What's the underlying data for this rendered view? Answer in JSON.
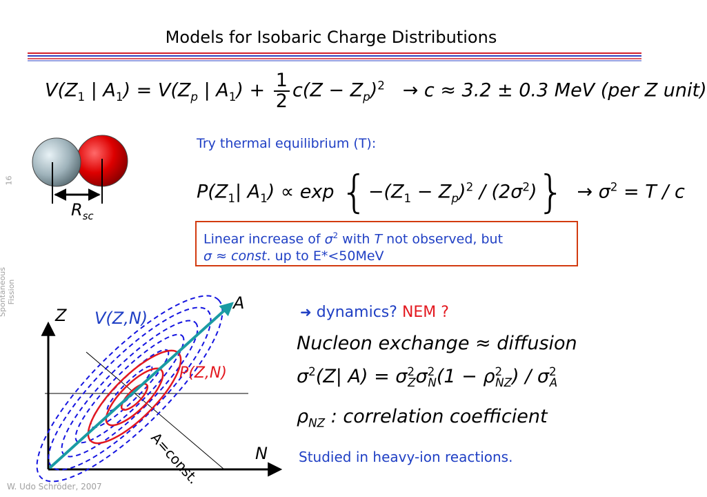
{
  "title": "Models for Isobaric Charge Distributions",
  "colors": {
    "accent_red": "#e3181f",
    "accent_blue": "#1f3fc4",
    "note_border": "#d23a0f",
    "arrow_teal": "#1a9ba3"
  },
  "equation1": {
    "lhs": "V(Z",
    "lhs_sub": "1",
    "lhs_mid": " | A",
    "lhs_sub2": "1",
    "lhs_end": ") = V(Z",
    "rhs_sub": "p",
    "rhs_mid": " | A",
    "rhs_sub2": "1",
    "rhs_end": ") +",
    "frac_num": "1",
    "frac_den": "2",
    "quad": "c(Z − Z",
    "quad_sub": "p",
    "quad_end": ")",
    "quad_sup": "2",
    "result": "→ c ≈ 3.2 ± 0.3 MeV (per Z unit)"
  },
  "rsc_label": "R",
  "rsc_sub": "sc",
  "try_label": "Try thermal equilibrium (T):",
  "equation2": {
    "lhs": "P(Z",
    "lhs_sub": "1",
    "lhs_mid": "| A",
    "lhs_sub2": "1",
    "lhs_end": ") ∝ exp",
    "inner": "−(Z",
    "inner_sub": "1",
    "inner_mid": " − Z",
    "inner_sub2": "p",
    "inner_end": ")",
    "inner_sup": "2",
    "div": " / (2σ",
    "div_sup": "2",
    "div_end": ")",
    "result": "→ σ",
    "result_sup": "2",
    "result_end": " = T / c"
  },
  "note": {
    "line1_a": "Linear increase of ",
    "line1_sigma": "σ",
    "line1_sup": "2",
    "line1_b": " with ",
    "line1_T": "T",
    "line1_c": " not observed, but",
    "line2_sigma": "σ",
    "line2_a": " ≈ ",
    "line2_const": "const",
    "line2_b": ". up to E*<50MeV"
  },
  "diagram": {
    "z_label": "Z",
    "n_label": "N",
    "a_label": "A",
    "v_label": "V(Z,N)",
    "p_label": "P(Z,N)",
    "a_const_label": "A=const."
  },
  "dynamics": {
    "arrow": "",
    "text": " dynamics? ",
    "nem": "NEM ?"
  },
  "equation3": {
    "left": "Nucleon exchange",
    "mid": " ≈ ",
    "right": "diffusion"
  },
  "equation4": {
    "lhs": "σ",
    "lhs_sup": "2",
    "lhs_mid": "(Z| A) = σ",
    "z_sub": "Z",
    "z_sup": "2",
    "sig": "σ",
    "n_sub": "N",
    "n_sup": "2",
    "paren": "(1 − ρ",
    "rho_sub": "NZ",
    "rho_sup": "2",
    "paren_end": ") / σ",
    "a_sub": "A",
    "a_sup": "2"
  },
  "equation5": {
    "rho": "ρ",
    "rho_sub": "NZ",
    "text": " : correlation coefficient"
  },
  "studied": "Studied in heavy-ion reactions.",
  "author": "W. Udo Schröder, 2007",
  "side_label": "Spontaneous Fission",
  "page_number": "16"
}
